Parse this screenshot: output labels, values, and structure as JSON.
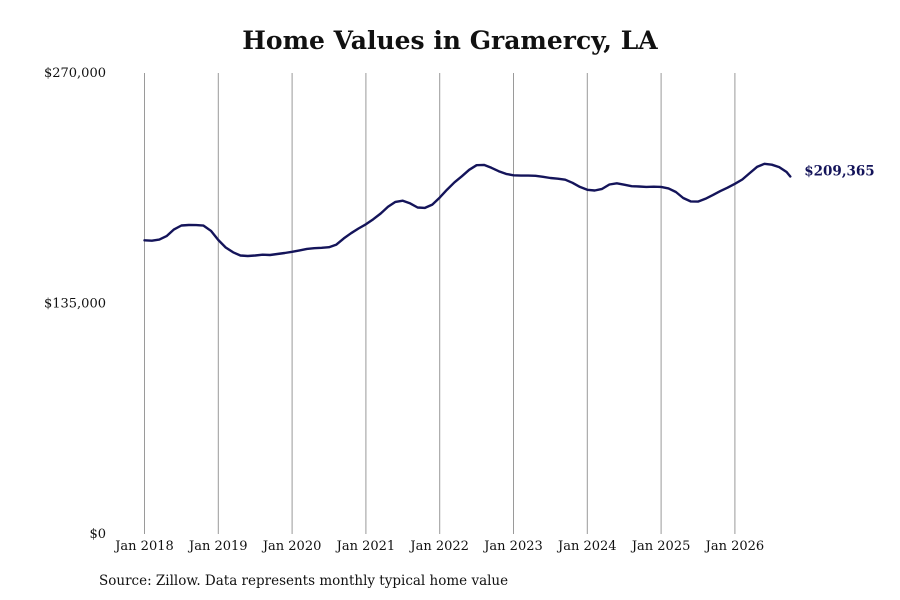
{
  "chart_data": {
    "type": "line",
    "title": "Home Values in Gramercy, LA",
    "source": "Source: Zillow. Data represents monthly typical home value",
    "ylim": [
      0,
      270000
    ],
    "y_ticks": [
      {
        "value": 0,
        "label": "$0"
      },
      {
        "value": 135000,
        "label": "$135,000"
      },
      {
        "value": 270000,
        "label": "$270,000"
      }
    ],
    "x_ticks": [
      {
        "value": 2018.0,
        "label": "Jan 2018"
      },
      {
        "value": 2019.0,
        "label": "Jan 2019"
      },
      {
        "value": 2020.0,
        "label": "Jan 2020"
      },
      {
        "value": 2021.0,
        "label": "Jan 2021"
      },
      {
        "value": 2022.0,
        "label": "Jan 2022"
      },
      {
        "value": 2023.0,
        "label": "Jan 2023"
      },
      {
        "value": 2024.0,
        "label": "Jan 2024"
      },
      {
        "value": 2025.0,
        "label": "Jan 2025"
      },
      {
        "value": 2026.0,
        "label": "Jan 2026"
      }
    ],
    "xlim": [
      2017.8,
      2027.0
    ],
    "grid": "vertical",
    "line_color": "#14145a",
    "grid_color": "#9a9a9a",
    "end_label": "$209,365",
    "series": [
      {
        "values": [
          [
            2018.0,
            172000
          ],
          [
            2018.1,
            171800
          ],
          [
            2018.2,
            172400
          ],
          [
            2018.3,
            174500
          ],
          [
            2018.4,
            178400
          ],
          [
            2018.5,
            180700
          ],
          [
            2018.6,
            181000
          ],
          [
            2018.7,
            180900
          ],
          [
            2018.8,
            180600
          ],
          [
            2018.9,
            177600
          ],
          [
            2019.0,
            172200
          ],
          [
            2019.1,
            167800
          ],
          [
            2019.2,
            165000
          ],
          [
            2019.3,
            163100
          ],
          [
            2019.4,
            162800
          ],
          [
            2019.5,
            163100
          ],
          [
            2019.6,
            163600
          ],
          [
            2019.7,
            163400
          ],
          [
            2019.8,
            164000
          ],
          [
            2019.9,
            164600
          ],
          [
            2020.0,
            165300
          ],
          [
            2020.1,
            166100
          ],
          [
            2020.2,
            167000
          ],
          [
            2020.3,
            167400
          ],
          [
            2020.4,
            167600
          ],
          [
            2020.5,
            168000
          ],
          [
            2020.6,
            169500
          ],
          [
            2020.7,
            173100
          ],
          [
            2020.8,
            176200
          ],
          [
            2020.9,
            178900
          ],
          [
            2021.0,
            181400
          ],
          [
            2021.1,
            184400
          ],
          [
            2021.2,
            187700
          ],
          [
            2021.3,
            191700
          ],
          [
            2021.4,
            194500
          ],
          [
            2021.5,
            195200
          ],
          [
            2021.6,
            193600
          ],
          [
            2021.7,
            191200
          ],
          [
            2021.8,
            191000
          ],
          [
            2021.9,
            192900
          ],
          [
            2022.0,
            197000
          ],
          [
            2022.1,
            201700
          ],
          [
            2022.2,
            206000
          ],
          [
            2022.3,
            209500
          ],
          [
            2022.4,
            213300
          ],
          [
            2022.5,
            216000
          ],
          [
            2022.6,
            216200
          ],
          [
            2022.7,
            214500
          ],
          [
            2022.8,
            212500
          ],
          [
            2022.9,
            210900
          ],
          [
            2023.0,
            210100
          ],
          [
            2023.1,
            209900
          ],
          [
            2023.2,
            209900
          ],
          [
            2023.3,
            209800
          ],
          [
            2023.4,
            209200
          ],
          [
            2023.5,
            208500
          ],
          [
            2023.6,
            208100
          ],
          [
            2023.7,
            207500
          ],
          [
            2023.8,
            205700
          ],
          [
            2023.9,
            203300
          ],
          [
            2024.0,
            201600
          ],
          [
            2024.1,
            201200
          ],
          [
            2024.2,
            202100
          ],
          [
            2024.3,
            204700
          ],
          [
            2024.4,
            205400
          ],
          [
            2024.5,
            204600
          ],
          [
            2024.6,
            203700
          ],
          [
            2024.7,
            203500
          ],
          [
            2024.8,
            203300
          ],
          [
            2024.9,
            203400
          ],
          [
            2025.0,
            203300
          ],
          [
            2025.1,
            202400
          ],
          [
            2025.2,
            200300
          ],
          [
            2025.3,
            196800
          ],
          [
            2025.4,
            194800
          ],
          [
            2025.5,
            194700
          ],
          [
            2025.6,
            196300
          ],
          [
            2025.7,
            198500
          ],
          [
            2025.8,
            200800
          ],
          [
            2025.9,
            202800
          ],
          [
            2026.0,
            205100
          ],
          [
            2026.1,
            207600
          ],
          [
            2026.2,
            211400
          ],
          [
            2026.3,
            215000
          ],
          [
            2026.4,
            216800
          ],
          [
            2026.5,
            216300
          ],
          [
            2026.6,
            214900
          ],
          [
            2026.7,
            212000
          ],
          [
            2026.75,
            209365
          ]
        ]
      }
    ]
  }
}
